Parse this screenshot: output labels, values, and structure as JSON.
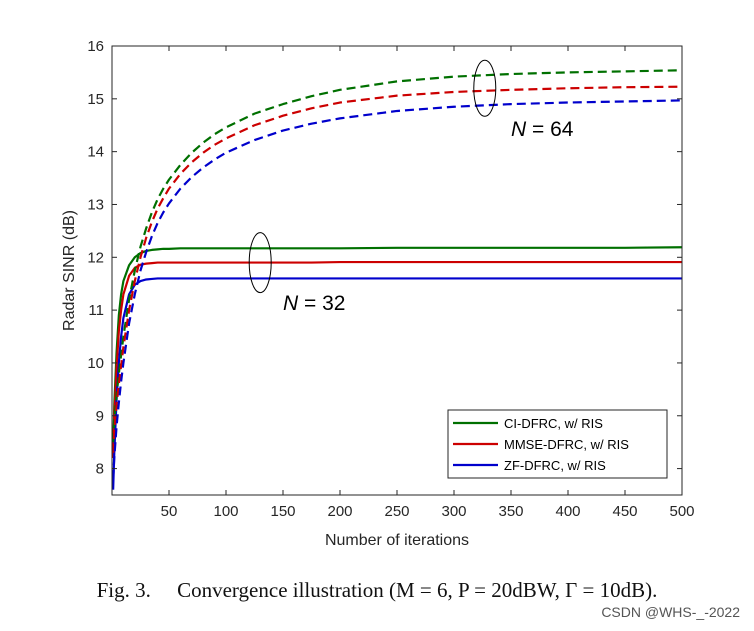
{
  "chart_data": {
    "type": "line",
    "xlabel": "Number of iterations",
    "ylabel": "Radar SINR (dB)",
    "xlim": [
      0,
      500
    ],
    "ylim": [
      7.5,
      16
    ],
    "xticks": [
      50,
      100,
      150,
      200,
      250,
      300,
      350,
      400,
      450,
      500
    ],
    "yticks": [
      8,
      9,
      10,
      11,
      12,
      13,
      14,
      15,
      16
    ],
    "grid": false,
    "legend_position": "bottom-right",
    "legend": [
      "CI-DFRC, w/ RIS",
      "MMSE-DFRC, w/ RIS",
      "ZF-DFRC, w/ RIS"
    ],
    "x": [
      1,
      2,
      4,
      6,
      8,
      10,
      15,
      20,
      25,
      30,
      35,
      40,
      45,
      50,
      60,
      70,
      80,
      90,
      100,
      125,
      150,
      175,
      200,
      250,
      300,
      350,
      400,
      450,
      500
    ],
    "series": [
      {
        "name": "CI-DFRC, w/ RIS",
        "group": "N = 32",
        "style": "solid",
        "color": "#007000",
        "values": [
          8.4,
          9.2,
          10.2,
          10.9,
          11.3,
          11.55,
          11.85,
          12.0,
          12.08,
          12.12,
          12.14,
          12.15,
          12.16,
          12.16,
          12.17,
          12.17,
          12.17,
          12.17,
          12.17,
          12.17,
          12.17,
          12.17,
          12.17,
          12.18,
          12.18,
          12.18,
          12.18,
          12.18,
          12.19
        ]
      },
      {
        "name": "MMSE-DFRC, w/ RIS",
        "group": "N = 32",
        "style": "solid",
        "color": "#cc0000",
        "values": [
          8.2,
          9.0,
          9.9,
          10.6,
          11.0,
          11.3,
          11.65,
          11.8,
          11.86,
          11.88,
          11.89,
          11.9,
          11.9,
          11.9,
          11.9,
          11.9,
          11.9,
          11.9,
          11.9,
          11.9,
          11.9,
          11.9,
          11.91,
          11.91,
          11.91,
          11.91,
          11.91,
          11.91,
          11.91
        ]
      },
      {
        "name": "ZF-DFRC, w/ RIS",
        "group": "N = 32",
        "style": "solid",
        "color": "#0000cc",
        "values": [
          7.6,
          8.3,
          9.3,
          10.0,
          10.5,
          10.85,
          11.3,
          11.48,
          11.55,
          11.58,
          11.59,
          11.6,
          11.6,
          11.6,
          11.6,
          11.6,
          11.6,
          11.6,
          11.6,
          11.6,
          11.6,
          11.6,
          11.6,
          11.6,
          11.6,
          11.6,
          11.6,
          11.6,
          11.6
        ]
      },
      {
        "name": "CI-DFRC, w/ RIS",
        "group": "N = 64",
        "style": "dashed",
        "color": "#007000",
        "values": [
          8.5,
          8.9,
          9.4,
          9.8,
          10.15,
          10.5,
          11.2,
          11.75,
          12.2,
          12.55,
          12.85,
          13.1,
          13.3,
          13.47,
          13.75,
          13.98,
          14.17,
          14.33,
          14.46,
          14.72,
          14.9,
          15.05,
          15.17,
          15.33,
          15.42,
          15.47,
          15.5,
          15.52,
          15.54
        ]
      },
      {
        "name": "MMSE-DFRC, w/ RIS",
        "group": "N = 64",
        "style": "dashed",
        "color": "#cc0000",
        "values": [
          8.3,
          8.7,
          9.2,
          9.6,
          9.95,
          10.3,
          11.0,
          11.55,
          12.0,
          12.37,
          12.67,
          12.92,
          13.12,
          13.3,
          13.58,
          13.8,
          13.98,
          14.13,
          14.25,
          14.5,
          14.68,
          14.82,
          14.93,
          15.06,
          15.13,
          15.17,
          15.2,
          15.22,
          15.23
        ]
      },
      {
        "name": "ZF-DFRC, w/ RIS",
        "group": "N = 64",
        "style": "dashed",
        "color": "#0000cc",
        "values": [
          7.8,
          8.2,
          8.8,
          9.25,
          9.65,
          10.0,
          10.75,
          11.3,
          11.75,
          12.1,
          12.4,
          12.65,
          12.85,
          13.02,
          13.3,
          13.52,
          13.7,
          13.85,
          13.98,
          14.22,
          14.4,
          14.53,
          14.63,
          14.77,
          14.85,
          14.9,
          14.93,
          14.95,
          14.97
        ]
      }
    ],
    "annotations": [
      {
        "text_italic": "N",
        "text_rest": " = 64",
        "x": 350,
        "y": 14.3
      },
      {
        "text_italic": "N",
        "text_rest": " = 32",
        "x": 150,
        "y": 11.0
      }
    ]
  },
  "caption": "Fig. 3.     Convergence illustration (M = 6, P = 20dBW, Γ = 10dB).",
  "watermark": "CSDN @WHS-_-2022"
}
